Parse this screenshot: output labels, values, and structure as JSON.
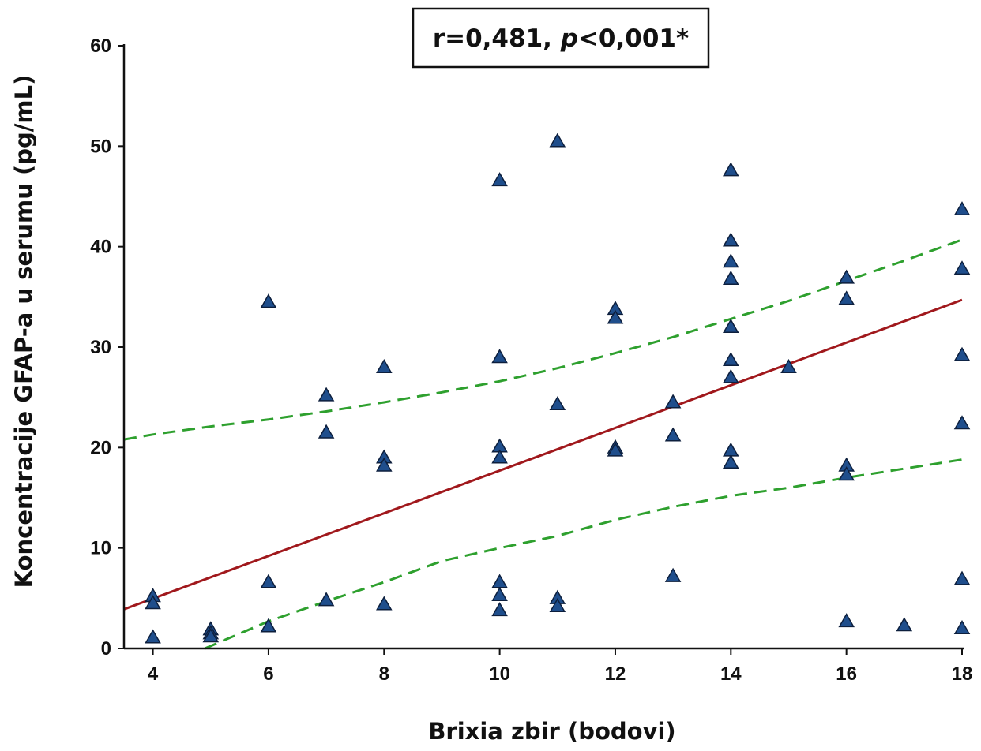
{
  "chart_data": {
    "type": "scatter",
    "title": "",
    "xlabel": "Brixia zbir (bodovi)",
    "ylabel": "Koncentracije GFAP-a u serumu (pg/mL)",
    "xlim": [
      3.5,
      18
    ],
    "ylim": [
      0,
      60
    ],
    "xticks": [
      "4",
      "6",
      "8",
      "10",
      "12",
      "14",
      "16",
      "18"
    ],
    "yticks": [
      "0",
      "10",
      "20",
      "30",
      "40",
      "50",
      "60"
    ],
    "grid": false,
    "legend": "none",
    "annotation": {
      "prefix": "r=0,481, ",
      "italic": "p",
      "suffix": "<0,001*"
    },
    "marker": {
      "shape": "triangle",
      "fill": "#1f4e8c",
      "stroke": "#0d1f3d"
    },
    "points": [
      {
        "x": 4,
        "y": 5.2
      },
      {
        "x": 4,
        "y": 4.5
      },
      {
        "x": 4,
        "y": 1.1
      },
      {
        "x": 5,
        "y": 1.9
      },
      {
        "x": 5,
        "y": 1.5
      },
      {
        "x": 5,
        "y": 1.2
      },
      {
        "x": 6,
        "y": 34.5
      },
      {
        "x": 6,
        "y": 6.6
      },
      {
        "x": 6,
        "y": 2.2
      },
      {
        "x": 7,
        "y": 25.2
      },
      {
        "x": 7,
        "y": 21.5
      },
      {
        "x": 7,
        "y": 4.8
      },
      {
        "x": 8,
        "y": 28.0
      },
      {
        "x": 8,
        "y": 19.0
      },
      {
        "x": 8,
        "y": 18.2
      },
      {
        "x": 8,
        "y": 4.4
      },
      {
        "x": 10,
        "y": 46.6
      },
      {
        "x": 10,
        "y": 29.0
      },
      {
        "x": 10,
        "y": 20.1
      },
      {
        "x": 10,
        "y": 19.0
      },
      {
        "x": 10,
        "y": 6.6
      },
      {
        "x": 10,
        "y": 5.3
      },
      {
        "x": 10,
        "y": 3.8
      },
      {
        "x": 11,
        "y": 50.5
      },
      {
        "x": 11,
        "y": 24.3
      },
      {
        "x": 11,
        "y": 5.0
      },
      {
        "x": 11,
        "y": 4.2
      },
      {
        "x": 12,
        "y": 33.8
      },
      {
        "x": 12,
        "y": 32.9
      },
      {
        "x": 12,
        "y": 20.0
      },
      {
        "x": 12,
        "y": 19.7
      },
      {
        "x": 13,
        "y": 24.5
      },
      {
        "x": 13,
        "y": 21.2
      },
      {
        "x": 13,
        "y": 7.2
      },
      {
        "x": 14,
        "y": 47.6
      },
      {
        "x": 14,
        "y": 40.6
      },
      {
        "x": 14,
        "y": 38.5
      },
      {
        "x": 14,
        "y": 36.8
      },
      {
        "x": 14,
        "y": 32.0
      },
      {
        "x": 14,
        "y": 28.7
      },
      {
        "x": 14,
        "y": 27.0
      },
      {
        "x": 14,
        "y": 19.7
      },
      {
        "x": 14,
        "y": 18.5
      },
      {
        "x": 15,
        "y": 28.0
      },
      {
        "x": 16,
        "y": 36.9
      },
      {
        "x": 16,
        "y": 34.8
      },
      {
        "x": 16,
        "y": 18.2
      },
      {
        "x": 16,
        "y": 17.3
      },
      {
        "x": 16,
        "y": 2.7
      },
      {
        "x": 17,
        "y": 2.3
      },
      {
        "x": 18,
        "y": 43.7
      },
      {
        "x": 18,
        "y": 37.8
      },
      {
        "x": 18,
        "y": 29.2
      },
      {
        "x": 18,
        "y": 22.4
      },
      {
        "x": 18,
        "y": 6.9
      },
      {
        "x": 18,
        "y": 2.0
      }
    ],
    "regression_line": {
      "color": "#a0181c",
      "x": [
        3.5,
        18
      ],
      "y": [
        3.9,
        34.7
      ]
    },
    "confidence_upper": {
      "color": "#2ea02e",
      "x": [
        3.5,
        4,
        5,
        6,
        7,
        8,
        9,
        10,
        11,
        12,
        13,
        14,
        15,
        16,
        17,
        18
      ],
      "y": [
        20.8,
        21.3,
        22.1,
        22.8,
        23.6,
        24.5,
        25.5,
        26.6,
        27.9,
        29.4,
        31.0,
        32.8,
        34.6,
        36.6,
        38.6,
        40.7
      ]
    },
    "confidence_lower": {
      "color": "#2ea02e",
      "x": [
        4.9,
        6,
        7,
        8,
        9,
        10,
        11,
        12,
        13,
        14,
        15,
        16,
        17,
        18
      ],
      "y": [
        0.0,
        2.7,
        4.7,
        6.6,
        8.7,
        10.0,
        11.2,
        12.8,
        14.1,
        15.2,
        16.0,
        17.0,
        17.9,
        18.8
      ]
    }
  }
}
